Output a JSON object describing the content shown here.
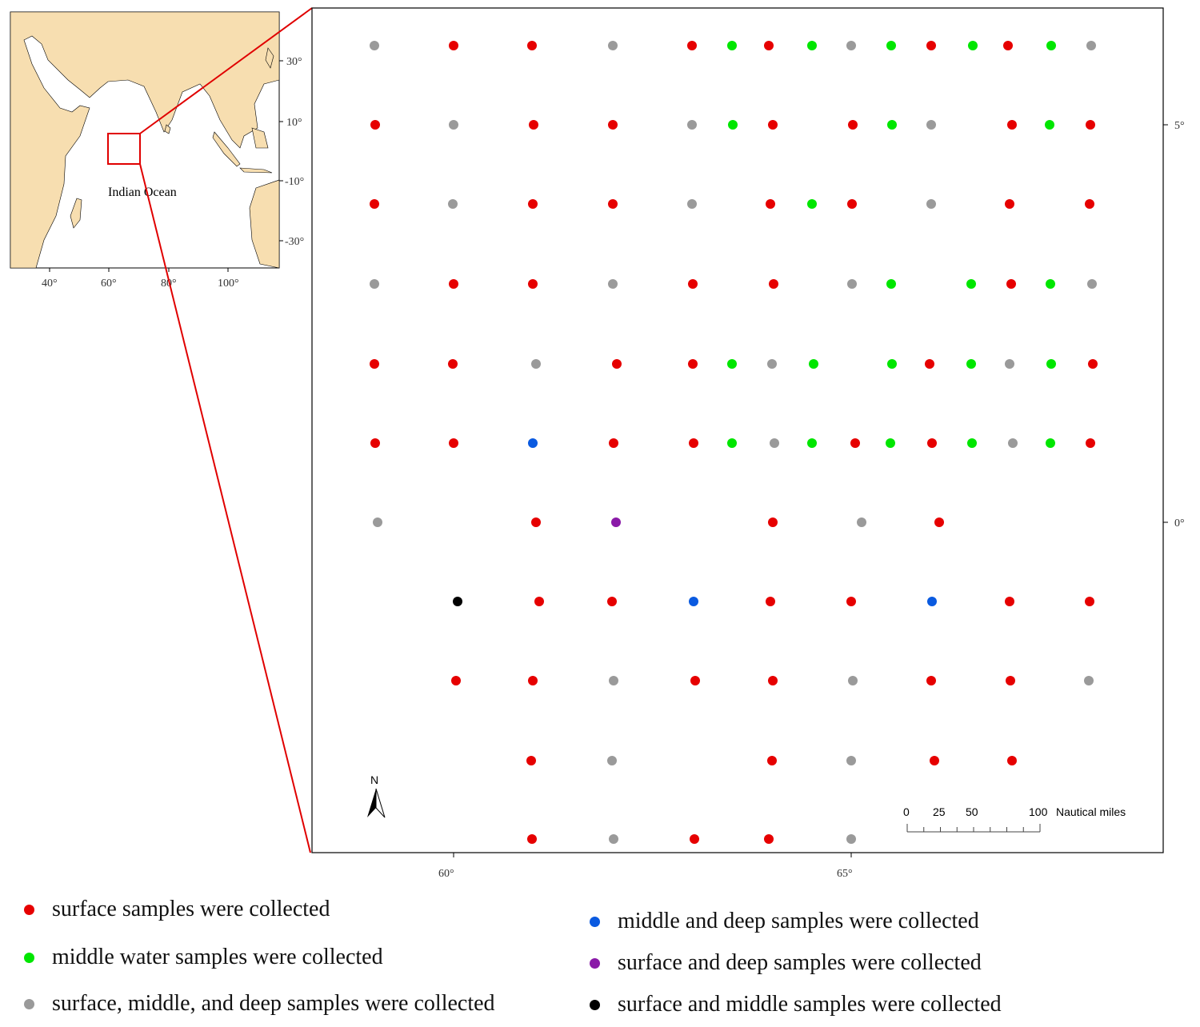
{
  "inset": {
    "label": "Indian Ocean",
    "lon_ticks": [
      "40°",
      "60°",
      "80°",
      "100°"
    ],
    "lat_ticks": [
      "30°",
      "10°",
      "-10°",
      "-30°"
    ],
    "land_color": "#f7deb0"
  },
  "main_map": {
    "lon_ticks": [
      "60°",
      "65°"
    ],
    "lat_ticks": [
      "5°",
      "0°"
    ],
    "north_label": "N",
    "scale_bar": {
      "labels": [
        "0",
        "25",
        "50",
        "100"
      ],
      "unit": "Nautical miles"
    },
    "rows": [
      [
        "gray",
        "red",
        "red",
        "gray",
        "red",
        "green",
        "red",
        "green",
        "gray",
        "green",
        "red",
        "green",
        "red",
        "green",
        "gray"
      ],
      [
        "red",
        "gray",
        "red",
        "red",
        "gray",
        "green",
        "red",
        "red",
        "green",
        "gray",
        "red",
        "green",
        "red"
      ],
      [
        "red",
        "gray",
        "red",
        "red",
        "gray",
        "red",
        "green",
        "red",
        "gray",
        "red",
        "red"
      ],
      [
        "gray",
        "red",
        "red",
        "gray",
        "red",
        "red",
        "gray",
        "green",
        "green",
        "red",
        "green",
        "gray"
      ],
      [
        "red",
        "red",
        "gray",
        "red",
        "red",
        "green",
        "gray",
        "green",
        "green",
        "red",
        "green",
        "gray",
        "green",
        "red"
      ],
      [
        "red",
        "red",
        "blue",
        "red",
        "red",
        "green",
        "gray",
        "green",
        "red",
        "green",
        "red",
        "green",
        "gray",
        "green",
        "red"
      ],
      [
        "gray",
        "red",
        "purple",
        "red",
        "gray",
        "red"
      ],
      [
        "black",
        "red",
        "red",
        "blue",
        "red",
        "red",
        "blue",
        "red",
        "red"
      ],
      [
        "red",
        "red",
        "gray",
        "red",
        "red",
        "gray",
        "red",
        "red",
        "gray"
      ],
      [
        "red",
        "gray",
        "red",
        "gray",
        "red",
        "red"
      ],
      [
        "red",
        "gray",
        "red",
        "red",
        "gray"
      ]
    ]
  },
  "colors": {
    "red": "#e60000",
    "green": "#00e600",
    "gray": "#9a9a9a",
    "blue": "#0a5ae0",
    "purple": "#8a1aa8",
    "black": "#000000",
    "frame_red": "#e00000"
  },
  "legend": [
    {
      "color": "red",
      "label": "surface samples were collected"
    },
    {
      "color": "green",
      "label": "middle water samples were collected"
    },
    {
      "color": "gray",
      "label": "surface, middle, and deep samples were collected"
    },
    {
      "color": "blue",
      "label": "middle and deep samples were collected"
    },
    {
      "color": "purple",
      "label": "surface and deep samples were collected"
    },
    {
      "color": "black",
      "label": "surface and middle samples were collected"
    }
  ]
}
